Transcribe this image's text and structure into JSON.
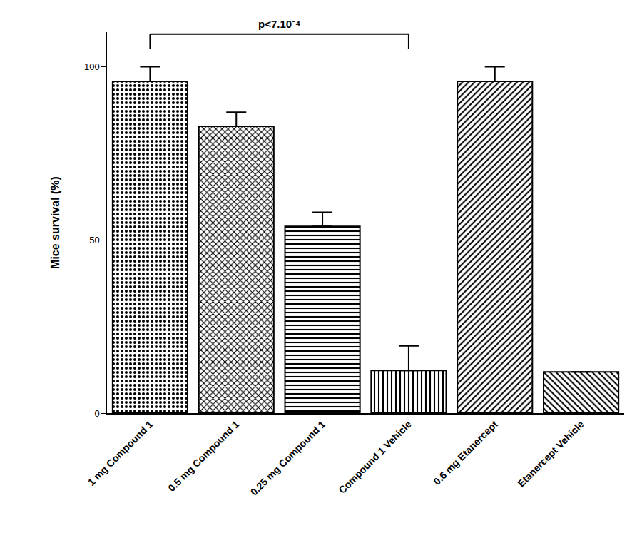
{
  "chart_data": {
    "type": "bar",
    "categories": [
      "1 mg Compound 1",
      "0.5 mg Compound 1",
      "0.25 mg Compound 1",
      "Compound 1 Vehicle",
      "0.6 mg Etanercept",
      "Etanercept Vehicle"
    ],
    "values": [
      95.8,
      82.8,
      53.9,
      12.3,
      95.8,
      11.9
    ],
    "errors": [
      4.2,
      4.1,
      4.1,
      7.1,
      4.2,
      null
    ],
    "color": "#000000",
    "y_label": "Mice survival (%)",
    "ylim": [
      0,
      110
    ],
    "yticks": [
      0,
      50,
      100
    ],
    "grid": false,
    "annotations": [
      {
        "text": "p<7.10⁻⁴",
        "from": "1 mg Compound 1",
        "to": "Compound 1 Vehicle"
      }
    ]
  }
}
